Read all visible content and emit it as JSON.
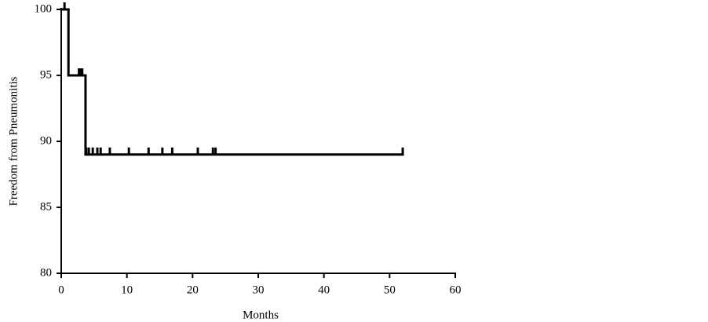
{
  "chart_data": {
    "type": "line",
    "step": "post",
    "color": "#000000",
    "xlabel": "Months",
    "ylabel": "Freedom from Pneumonitis",
    "x": [
      0,
      1.1,
      3.7,
      52
    ],
    "values": [
      100,
      95,
      89,
      89
    ],
    "censored": {
      "x": [
        0.5,
        2.7,
        3.0,
        3.2,
        3.8,
        4.2,
        4.8,
        5.5,
        6.0,
        7.4,
        10.3,
        13.3,
        15.4,
        16.9,
        20.8,
        23.1,
        23.5,
        52.0
      ],
      "values": [
        100,
        95,
        95,
        95,
        89,
        89,
        89,
        89,
        89,
        89,
        89,
        89,
        89,
        89,
        89,
        89,
        89,
        89
      ]
    },
    "xlim": [
      0,
      60
    ],
    "ylim": [
      80,
      100
    ],
    "xticks": [
      0,
      10,
      20,
      30,
      40,
      50,
      60
    ],
    "yticks": [
      80,
      85,
      90,
      95,
      100
    ]
  }
}
